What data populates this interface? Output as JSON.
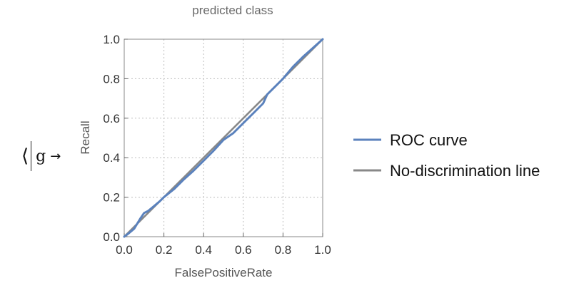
{
  "expression": {
    "open_bracket": "⟨",
    "variable": "g",
    "arrow": "→"
  },
  "chart_data": {
    "type": "line",
    "title": "predicted class",
    "xlabel": "FalsePositiveRate",
    "ylabel": "Recall",
    "xlim": [
      0,
      1
    ],
    "ylim": [
      0,
      1
    ],
    "xticks": [
      "0.0",
      "0.2",
      "0.4",
      "0.6",
      "0.8",
      "1.0"
    ],
    "yticks": [
      "0.0",
      "0.2",
      "0.4",
      "0.6",
      "0.8",
      "1.0"
    ],
    "grid": true,
    "legend_position": "right",
    "series": [
      {
        "name": "ROC curve",
        "color": "#5b82bd",
        "points": [
          [
            0,
            0
          ],
          [
            0.02,
            0.015
          ],
          [
            0.05,
            0.04
          ],
          [
            0.08,
            0.09
          ],
          [
            0.1,
            0.12
          ],
          [
            0.12,
            0.13
          ],
          [
            0.15,
            0.155
          ],
          [
            0.18,
            0.18
          ],
          [
            0.2,
            0.2
          ],
          [
            0.25,
            0.24
          ],
          [
            0.3,
            0.29
          ],
          [
            0.35,
            0.335
          ],
          [
            0.4,
            0.385
          ],
          [
            0.45,
            0.435
          ],
          [
            0.5,
            0.49
          ],
          [
            0.55,
            0.525
          ],
          [
            0.6,
            0.575
          ],
          [
            0.65,
            0.625
          ],
          [
            0.7,
            0.675
          ],
          [
            0.72,
            0.72
          ],
          [
            0.75,
            0.75
          ],
          [
            0.8,
            0.8
          ],
          [
            0.85,
            0.86
          ],
          [
            0.9,
            0.91
          ],
          [
            0.95,
            0.955
          ],
          [
            1,
            1
          ]
        ]
      },
      {
        "name": "No-discrimination line",
        "color": "#888888",
        "points": [
          [
            0,
            0
          ],
          [
            1,
            1
          ]
        ]
      }
    ]
  }
}
